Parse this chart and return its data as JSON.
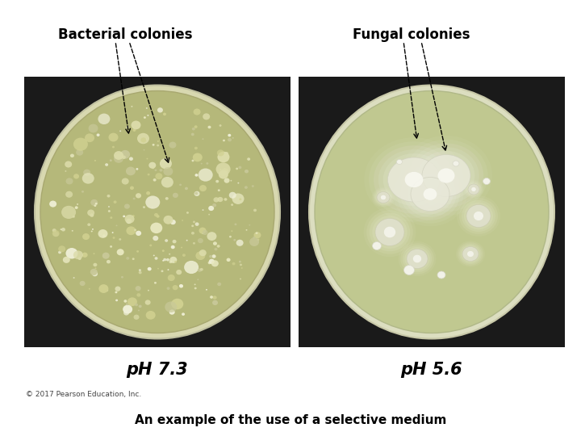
{
  "title": "An example of the use of a selective medium",
  "label_left": "Bacterial colonies",
  "label_right": "Fungal colonies",
  "ph_left": "pH 7.3",
  "ph_right": "pH 5.6",
  "copyright": "© 2017 Pearson Education, Inc.",
  "bg_color": "#ffffff",
  "label_fontsize": 12,
  "ph_fontsize": 15,
  "title_fontsize": 11,
  "copyright_fontsize": 6.5,
  "arrow_color": "#000000",
  "dark_bg": "#1a1a1a",
  "agar_left": "#b5b87a",
  "agar_right": "#c0c890",
  "rim_left": "#d8d8b0",
  "rim_right": "#dcdec0",
  "colony_colors_left": [
    "#e8e8c0",
    "#dcdcaa",
    "#d0d090",
    "#f0f0d8",
    "#c8c898"
  ],
  "colony_colors_right": [
    "#f0f0e0",
    "#e8e8d0",
    "#ebebdd"
  ]
}
